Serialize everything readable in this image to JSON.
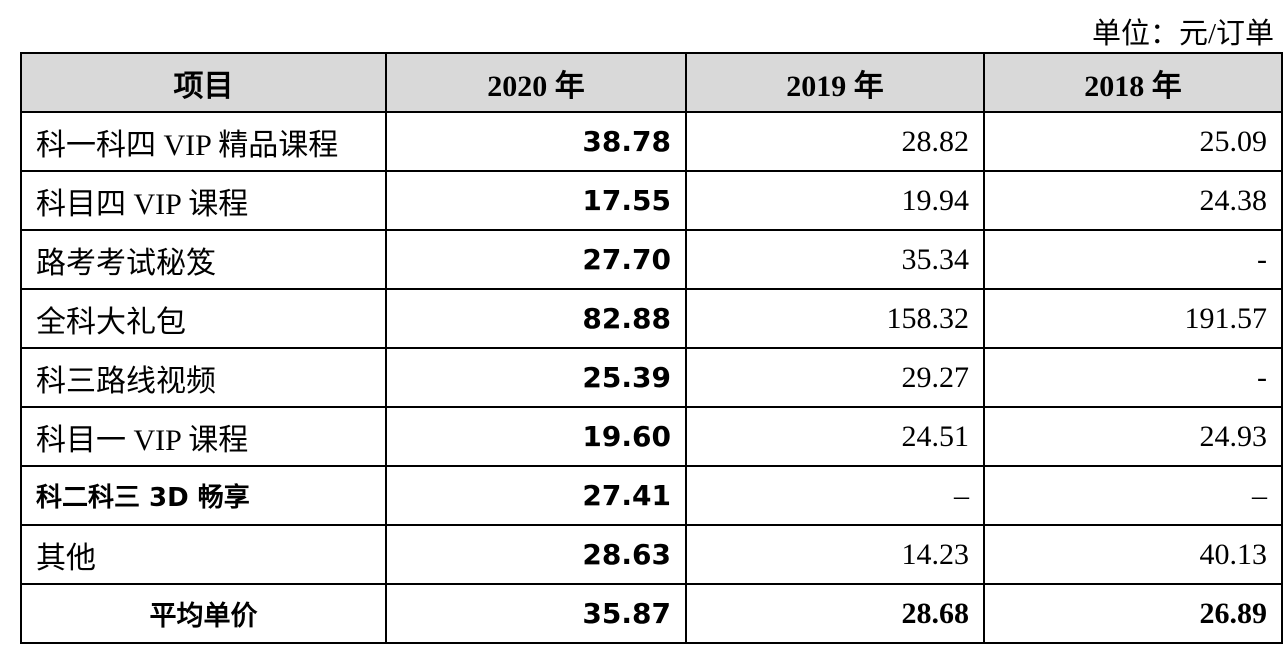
{
  "unit": "单位：元/订单",
  "table": {
    "header": [
      "项目",
      "2020 年",
      "2019 年",
      "2018 年"
    ],
    "rows": [
      [
        "科一科四 VIP 精品课程",
        "38.78",
        "28.82",
        "25.09"
      ],
      [
        "科目四 VIP 课程",
        "17.55",
        "19.94",
        "24.38"
      ],
      [
        "路考考试秘笈",
        "27.70",
        "35.34",
        "-"
      ],
      [
        "全科大礼包",
        "82.88",
        "158.32",
        "191.57"
      ],
      [
        "科三路线视频",
        "25.39",
        "29.27",
        "-"
      ],
      [
        "科目一 VIP 课程",
        "19.60",
        "24.51",
        "24.93"
      ],
      [
        "科二科三 3D 畅享",
        "27.41",
        "–",
        "–"
      ],
      [
        "其他",
        "28.63",
        "14.23",
        "40.13"
      ],
      [
        "平均单价",
        "35.87",
        "28.68",
        "26.89"
      ]
    ]
  }
}
